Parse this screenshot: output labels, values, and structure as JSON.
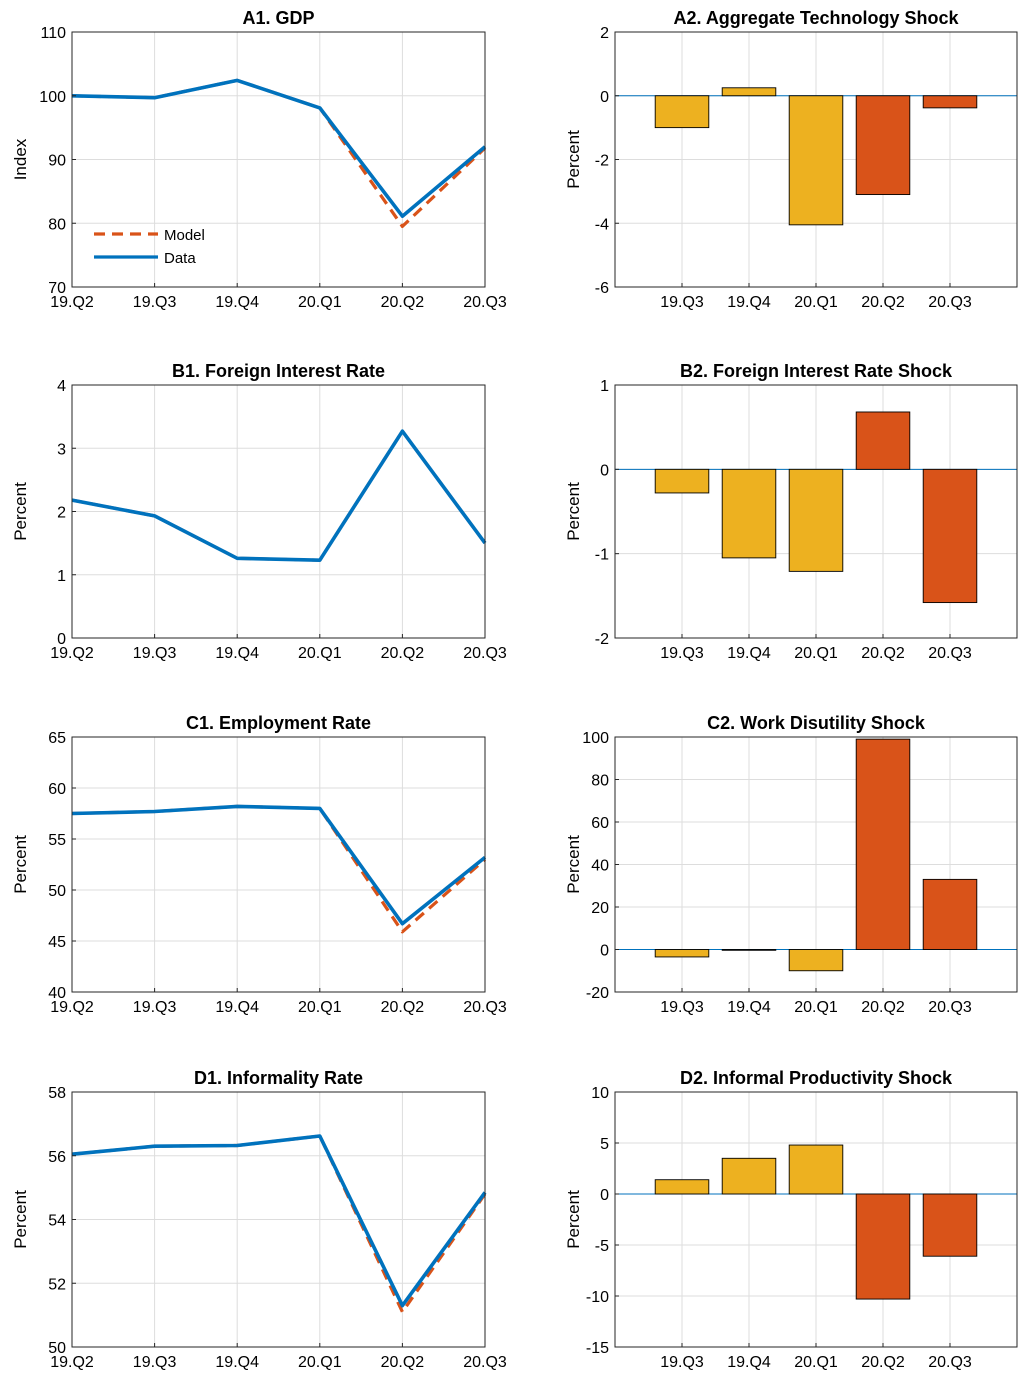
{
  "colors": {
    "data_line": "#0072BD",
    "model_line": "#D95319",
    "bar_early": "#EDB120",
    "bar_late": "#D95319",
    "grid": "#dddddd",
    "axis": "#262626"
  },
  "chart_data": [
    {
      "type": "line",
      "title": "A1. GDP",
      "ylabel": "Index",
      "categories": [
        "19.Q2",
        "19.Q3",
        "19.Q4",
        "20.Q1",
        "20.Q2",
        "20.Q3"
      ],
      "ylim": [
        70,
        110
      ],
      "yticks": [
        70,
        80,
        90,
        100,
        110
      ],
      "legend": "bottom-left",
      "series": [
        {
          "name": "Model",
          "style": "dashed",
          "values": [
            100,
            99.7,
            102.4,
            98.1,
            79.5,
            91.8
          ]
        },
        {
          "name": "Data",
          "style": "solid",
          "values": [
            100,
            99.7,
            102.4,
            98.1,
            81.1,
            92.0
          ]
        }
      ]
    },
    {
      "type": "bar",
      "title": "A2. Aggregate Technology Shock",
      "ylabel": "Percent",
      "categories": [
        "19.Q3",
        "19.Q4",
        "20.Q1",
        "20.Q2",
        "20.Q3"
      ],
      "ylim": [
        -6,
        2
      ],
      "yticks": [
        -6,
        -4,
        -2,
        0,
        2
      ],
      "values": [
        -1.0,
        0.25,
        -4.05,
        -3.1,
        -0.38
      ],
      "highlight_from": 3
    },
    {
      "type": "line",
      "title": "B1. Foreign Interest Rate",
      "ylabel": "Percent",
      "categories": [
        "19.Q2",
        "19.Q3",
        "19.Q4",
        "20.Q1",
        "20.Q2",
        "20.Q3"
      ],
      "ylim": [
        0,
        4
      ],
      "yticks": [
        0,
        1,
        2,
        3,
        4
      ],
      "series": [
        {
          "name": "Model",
          "style": "dashed",
          "values": [
            2.18,
            1.93,
            1.26,
            1.23,
            3.27,
            1.5
          ]
        },
        {
          "name": "Data",
          "style": "solid",
          "values": [
            2.18,
            1.93,
            1.26,
            1.23,
            3.27,
            1.5
          ]
        }
      ]
    },
    {
      "type": "bar",
      "title": "B2. Foreign Interest Rate Shock",
      "ylabel": "Percent",
      "categories": [
        "19.Q3",
        "19.Q4",
        "20.Q1",
        "20.Q2",
        "20.Q3"
      ],
      "ylim": [
        -2,
        1
      ],
      "yticks": [
        -2,
        -1,
        0,
        1
      ],
      "values": [
        -0.28,
        -1.05,
        -1.21,
        0.68,
        -1.58
      ],
      "highlight_from": 3
    },
    {
      "type": "line",
      "title": "C1. Employment Rate",
      "ylabel": "Percent",
      "categories": [
        "19.Q2",
        "19.Q3",
        "19.Q4",
        "20.Q1",
        "20.Q2",
        "20.Q3"
      ],
      "ylim": [
        40,
        65
      ],
      "yticks": [
        40,
        45,
        50,
        55,
        60,
        65
      ],
      "series": [
        {
          "name": "Model",
          "style": "dashed",
          "values": [
            57.5,
            57.7,
            58.2,
            58.0,
            45.9,
            53.0
          ]
        },
        {
          "name": "Data",
          "style": "solid",
          "values": [
            57.5,
            57.7,
            58.2,
            58.0,
            46.7,
            53.2
          ]
        }
      ]
    },
    {
      "type": "bar",
      "title": "C2. Work Disutility Shock",
      "ylabel": "Percent",
      "categories": [
        "19.Q3",
        "19.Q4",
        "20.Q1",
        "20.Q2",
        "20.Q3"
      ],
      "ylim": [
        -20,
        100
      ],
      "yticks": [
        -20,
        0,
        20,
        40,
        60,
        80,
        100
      ],
      "values": [
        -3.5,
        -0.3,
        -10.0,
        99.0,
        33.0
      ],
      "highlight_from": 3
    },
    {
      "type": "line",
      "title": "D1. Informality Rate",
      "ylabel": "Percent",
      "categories": [
        "19.Q2",
        "19.Q3",
        "19.Q4",
        "20.Q1",
        "20.Q2",
        "20.Q3"
      ],
      "ylim": [
        50,
        58
      ],
      "yticks": [
        50,
        52,
        54,
        56,
        58
      ],
      "series": [
        {
          "name": "Model",
          "style": "dashed",
          "values": [
            56.05,
            56.3,
            56.32,
            56.62,
            51.1,
            54.8
          ]
        },
        {
          "name": "Data",
          "style": "solid",
          "values": [
            56.05,
            56.3,
            56.32,
            56.62,
            51.3,
            54.85
          ]
        }
      ]
    },
    {
      "type": "bar",
      "title": "D2. Informal Productivity Shock",
      "ylabel": "Percent",
      "categories": [
        "19.Q3",
        "19.Q4",
        "20.Q1",
        "20.Q2",
        "20.Q3"
      ],
      "ylim": [
        -15,
        10
      ],
      "yticks": [
        -15,
        -10,
        -5,
        0,
        5,
        10
      ],
      "values": [
        1.4,
        3.5,
        4.8,
        -10.3,
        -6.1
      ],
      "highlight_from": 3
    }
  ]
}
